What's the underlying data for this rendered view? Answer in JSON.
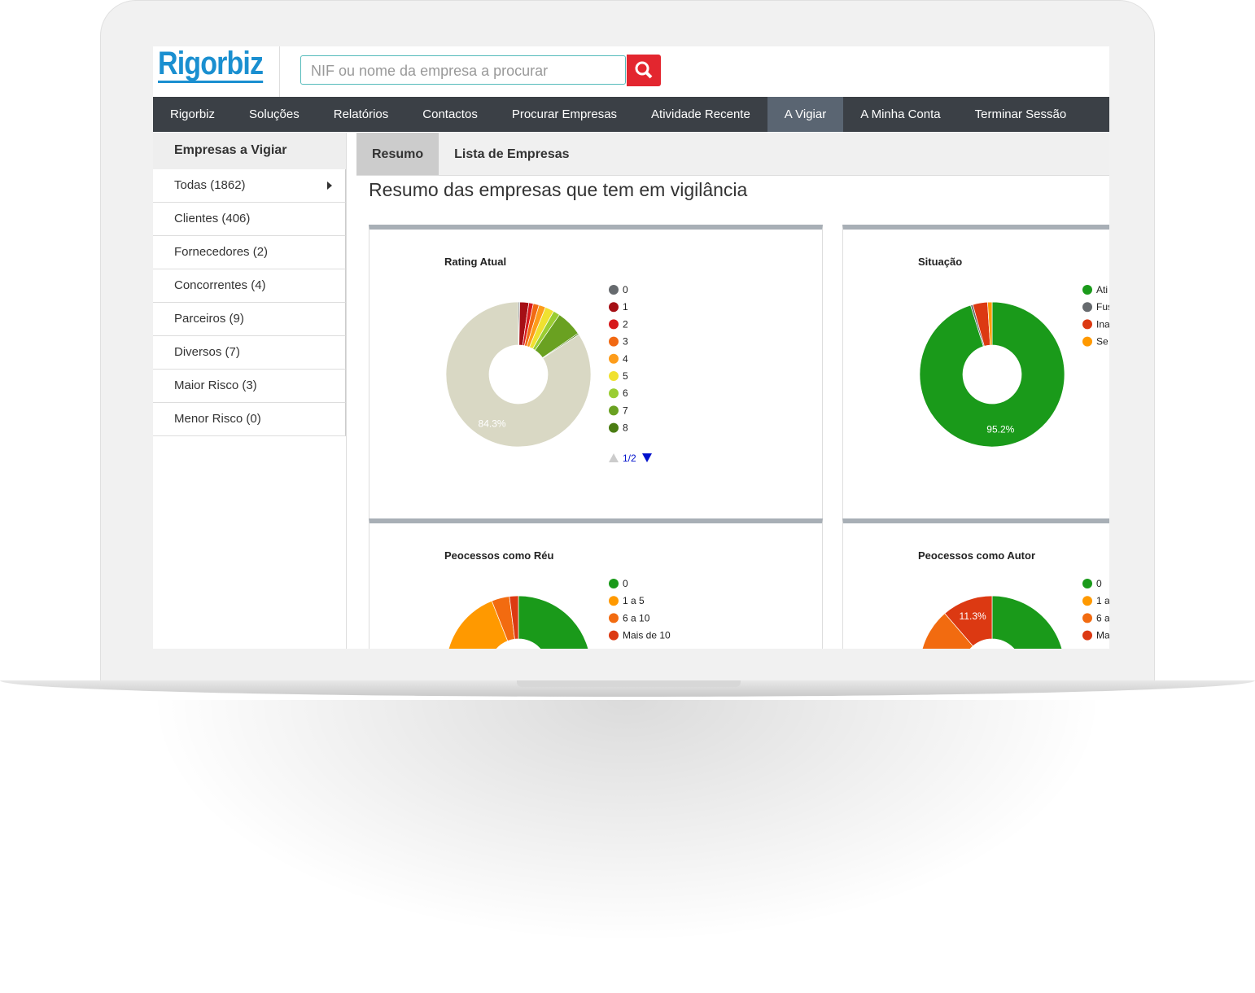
{
  "header": {
    "logo": "Rigorbiz",
    "search_placeholder": "NIF ou nome da empresa a procurar"
  },
  "nav": [
    "Rigorbiz",
    "Soluções",
    "Relatórios",
    "Contactos",
    "Procurar Empresas",
    "Atividade Recente",
    "A Vigiar",
    "A Minha Conta",
    "Terminar Sessão"
  ],
  "sidebar": {
    "title": "Empresas a Vigiar",
    "items": [
      "Todas (1862)",
      "Clientes (406)",
      "Fornecedores (2)",
      "Concorrentes (4)",
      "Parceiros (9)",
      "Diversos (7)",
      "Maior Risco (3)",
      "Menor Risco (0)"
    ]
  },
  "tabs": [
    "Resumo",
    "Lista de Empresas"
  ],
  "heading": "Resumo das empresas que tem em vigilância",
  "chart_data": [
    {
      "type": "pie",
      "title": "Rating Atual",
      "categories": [
        "0",
        "1",
        "2",
        "3",
        "4",
        "5",
        "6",
        "7",
        "8",
        null
      ],
      "values": [
        0.3,
        2.0,
        1.0,
        1.3,
        1.5,
        2.0,
        1.5,
        5.8,
        0.3,
        84.3
      ],
      "value_labels": [
        null,
        null,
        null,
        null,
        null,
        null,
        null,
        null,
        null,
        "84.3%"
      ],
      "colors": [
        "#666a6e",
        "#a50f15",
        "#d7191c",
        "#f16913",
        "#fd9c1a",
        "#f0e130",
        "#9acd32",
        "#6aa121",
        "#4a7c12",
        "#d9d8c4"
      ],
      "legend_page": "1/2"
    },
    {
      "type": "pie",
      "title": "Situação",
      "categories": [
        "Ati",
        "Fus",
        "Ina",
        "Se de"
      ],
      "values": [
        95.2,
        0.5,
        3.3,
        1.0
      ],
      "value_labels": [
        "95.2%",
        null,
        null,
        null
      ],
      "colors": [
        "#1a9a1a",
        "#666a6e",
        "#dc3912",
        "#ff9900"
      ]
    },
    {
      "type": "pie",
      "title": "Peocessos como Réu",
      "categories": [
        "0",
        "1 a 5",
        "6 a 10",
        "Mais de 10"
      ],
      "values": [
        51,
        43,
        4,
        2
      ],
      "colors": [
        "#1a9a1a",
        "#ff9900",
        "#f26b10",
        "#dc3912"
      ]
    },
    {
      "type": "pie",
      "title": "Peocessos como Autor",
      "categories": [
        "0",
        "1 a",
        "6 a",
        "Ma"
      ],
      "values": [
        52,
        25,
        11.4,
        11.3
      ],
      "value_labels": [
        null,
        null,
        null,
        "11.3%"
      ],
      "colors": [
        "#1a9a1a",
        "#ff9900",
        "#f26b10",
        "#dc3912"
      ]
    }
  ]
}
